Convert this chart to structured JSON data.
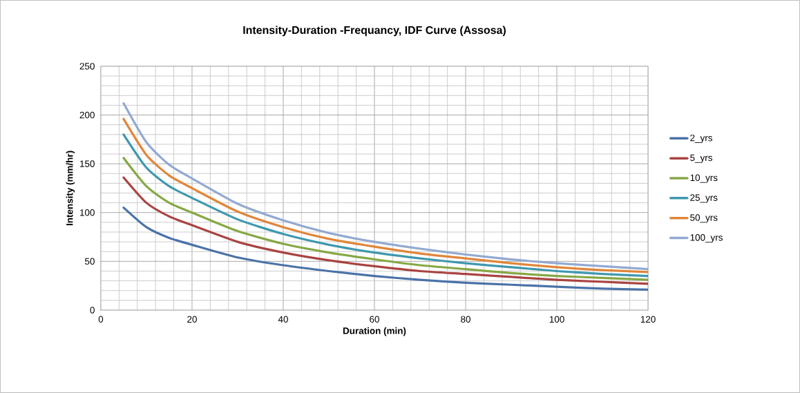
{
  "chart_data": {
    "type": "line",
    "title": "Intensity-Duration -Frequancy, IDF Curve (Assosa)",
    "xlabel": "Duration (min)",
    "ylabel": "Intensity (mm/hr)",
    "x": [
      5,
      10,
      15,
      20,
      30,
      40,
      50,
      60,
      70,
      80,
      90,
      100,
      110,
      120
    ],
    "series": [
      {
        "name": "2_yrs",
        "color": "#4a72a8",
        "values": [
          105,
          85,
          74,
          67,
          54,
          46,
          40,
          35,
          31,
          28,
          26,
          24,
          22,
          21
        ]
      },
      {
        "name": "5_yrs",
        "color": "#a94442",
        "values": [
          136,
          110,
          96,
          87,
          70,
          59,
          51,
          45,
          40,
          37,
          34,
          31,
          29,
          27
        ]
      },
      {
        "name": "10_yrs",
        "color": "#86a845",
        "values": [
          156,
          127,
          110,
          100,
          81,
          68,
          59,
          52,
          46,
          42,
          38,
          35,
          33,
          31
        ]
      },
      {
        "name": "25_yrs",
        "color": "#3e98ae",
        "values": [
          180,
          146,
          127,
          115,
          93,
          78,
          67,
          59,
          53,
          48,
          44,
          40,
          37,
          35
        ]
      },
      {
        "name": "50_yrs",
        "color": "#e0863a",
        "values": [
          196,
          159,
          138,
          125,
          101,
          85,
          73,
          65,
          58,
          53,
          48,
          44,
          41,
          39
        ]
      },
      {
        "name": "100_yrs",
        "color": "#92a9d1",
        "values": [
          212,
          172,
          149,
          135,
          109,
          92,
          79,
          70,
          63,
          57,
          52,
          48,
          45,
          42
        ]
      }
    ],
    "xlim": [
      0,
      120
    ],
    "ylim": [
      0,
      250
    ],
    "xticks": [
      0,
      20,
      40,
      60,
      80,
      100,
      120
    ],
    "yticks": [
      0,
      50,
      100,
      150,
      200,
      250
    ],
    "grid": true,
    "legend": "right",
    "marker": "none",
    "line_style": "solid"
  }
}
